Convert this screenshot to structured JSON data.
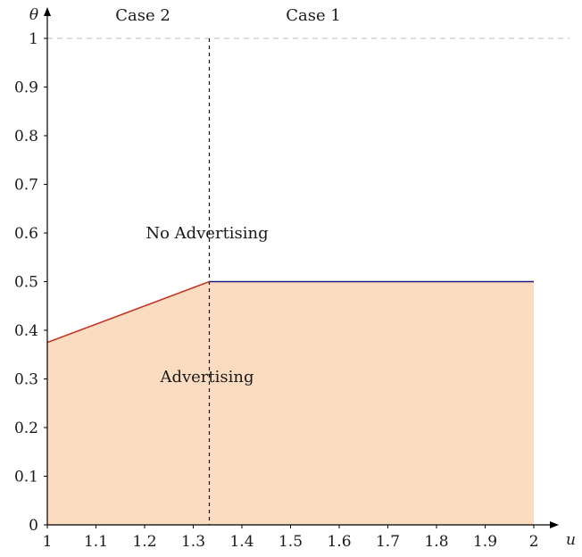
{
  "chart_data": {
    "type": "area",
    "x_axis": {
      "label": "u",
      "range": [
        1,
        2
      ],
      "ticks": [
        1,
        1.1,
        1.2,
        1.3,
        1.4,
        1.5,
        1.6,
        1.7,
        1.8,
        1.9,
        2
      ],
      "tick_labels": [
        "1",
        "1.1",
        "1.2",
        "1.3",
        "1.4",
        "1.5",
        "1.6",
        "1.7",
        "1.8",
        "1.9",
        "2"
      ]
    },
    "y_axis": {
      "label": "θ",
      "range": [
        0,
        1
      ],
      "ticks": [
        0,
        0.1,
        0.2,
        0.3,
        0.4,
        0.5,
        0.6,
        0.7,
        0.8,
        0.9,
        1
      ],
      "tick_labels": [
        "0",
        "0.1",
        "0.2",
        "0.3",
        "0.4",
        "0.5",
        "0.6",
        "0.7",
        "0.8",
        "0.9",
        "1"
      ]
    },
    "boundary": {
      "case2_segment": {
        "x": [
          1,
          1.333
        ],
        "y": [
          0.375,
          0.5
        ],
        "color": "#c0392b"
      },
      "case1_segment": {
        "x": [
          1.333,
          2
        ],
        "y": [
          0.5,
          0.5
        ],
        "color": "#1f1f7a"
      }
    },
    "region_fill_color": "#fcdcc0",
    "case_divider_x": 1.333,
    "reference_line_y": 1,
    "annotations": {
      "case2": "Case 2",
      "case1": "Case 1",
      "no_advertising": "No Advertising",
      "advertising": "Advertising"
    },
    "grid": false,
    "legend": "none"
  }
}
